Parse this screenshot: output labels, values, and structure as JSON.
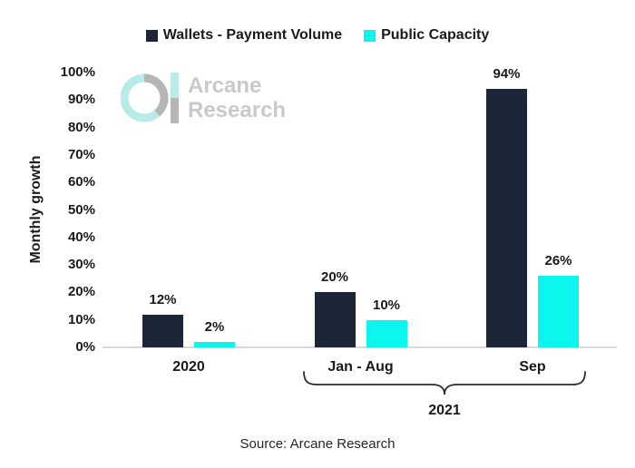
{
  "chart_data": {
    "type": "bar",
    "title": "",
    "categories": [
      "2020",
      "Jan - Aug",
      "Sep"
    ],
    "series": [
      {
        "name": "Wallets - Payment Volume",
        "color": "#1c2636",
        "values": [
          12,
          20,
          94
        ],
        "labels": [
          "12%",
          "20%",
          "94%"
        ]
      },
      {
        "name": "Public Capacity",
        "color": "#0cf6ee",
        "values": [
          2,
          10,
          26
        ],
        "labels": [
          "2%",
          "10%",
          "26%"
        ]
      }
    ],
    "ylabel": "Monthly growth",
    "xlabel": "",
    "ylim": [
      0,
      100
    ],
    "yticks": [
      "0%",
      "10%",
      "20%",
      "30%",
      "40%",
      "50%",
      "60%",
      "70%",
      "80%",
      "90%",
      "100%"
    ],
    "grid": false,
    "legend_position": "top",
    "x_group": {
      "label": "2021",
      "spans": [
        "Jan - Aug",
        "Sep"
      ]
    }
  },
  "watermark": {
    "line1": "Arcane",
    "line2": "Research"
  },
  "source": "Source: Arcane Research",
  "colors": {
    "navy": "#1c2636",
    "cyan": "#0cf6ee",
    "text": "#1a1a1a",
    "axis_line": "#d8d8d8",
    "bracket": "#2b2b2b",
    "watermark_text": "#c9c9c9",
    "logo_cyan": "#b9ebe8",
    "logo_gray": "#b6b6b6"
  }
}
